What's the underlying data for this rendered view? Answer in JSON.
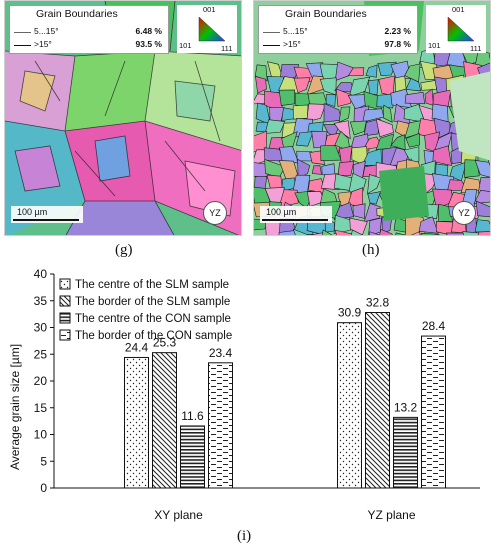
{
  "maps": [
    {
      "id": "g",
      "grain_boundaries_title": "Grain Boundaries",
      "rows": [
        {
          "range": "5...15°",
          "percent": "6.48 %"
        },
        {
          "range": ">15°",
          "percent": "93.5 %"
        }
      ],
      "ipf": {
        "top": "001",
        "left": "101",
        "right": "111"
      },
      "scale_bar": "100 µm",
      "plane": "YZ",
      "panel_label": "(g)"
    },
    {
      "id": "h",
      "grain_boundaries_title": "Grain Boundaries",
      "rows": [
        {
          "range": "5...15°",
          "percent": "2.23 %"
        },
        {
          "range": ">15°",
          "percent": "97.8 %"
        }
      ],
      "ipf": {
        "top": "001",
        "left": "101",
        "right": "111"
      },
      "scale_bar": "100 µm",
      "plane": "YZ",
      "panel_label": "(h)"
    }
  ],
  "chart_data": {
    "type": "bar",
    "categories": [
      "XY plane",
      "YZ plane"
    ],
    "series": [
      {
        "name": "The centre of the SLM sample",
        "values": [
          24.4,
          30.9
        ],
        "pattern": "dots"
      },
      {
        "name": "The border of the SLM sample",
        "values": [
          25.3,
          32.8
        ],
        "pattern": "diagonal"
      },
      {
        "name": "The centre of the CON sample",
        "values": [
          11.6,
          13.2
        ],
        "pattern": "horizontal"
      },
      {
        "name": "The border of the CON sample",
        "values": [
          23.4,
          28.4
        ],
        "pattern": "dashes"
      }
    ],
    "data_labels": [
      [
        "24.4",
        "30.9"
      ],
      [
        "25.3",
        "32.8"
      ],
      [
        "11.6",
        "13.2"
      ],
      [
        "23.4",
        "28.4"
      ]
    ],
    "ylabel": "Average grain size [µm]",
    "xlabel": "",
    "ylim": [
      0,
      40
    ],
    "yticks": [
      0,
      5,
      10,
      15,
      20,
      25,
      30,
      35,
      40
    ],
    "ytick_labels": [
      "0",
      "5",
      "10",
      "15",
      "20",
      "25",
      "30",
      "35",
      "40"
    ],
    "grid": false,
    "legend_position": "top-left",
    "panel_label": "(i)"
  }
}
